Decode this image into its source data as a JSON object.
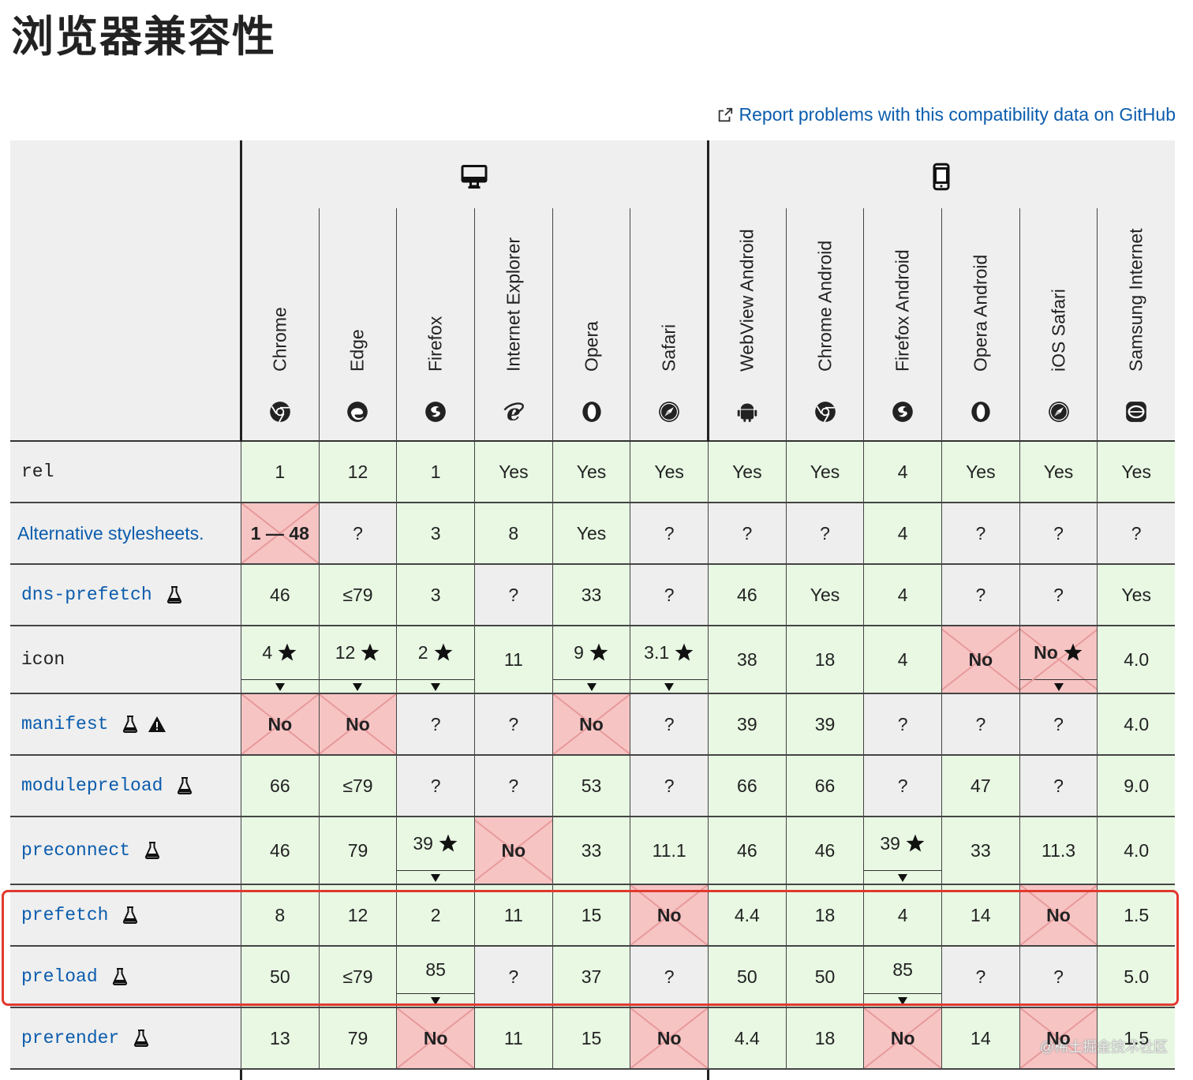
{
  "title": "浏览器兼容性",
  "report_link": "Report problems with this compatibility data on GitHub",
  "platforms": [
    {
      "name": "desktop",
      "icon": "desktop-icon"
    },
    {
      "name": "mobile",
      "icon": "mobile-icon"
    }
  ],
  "browsers": [
    {
      "name": "Chrome",
      "icon": "chrome-icon",
      "platform": "desktop"
    },
    {
      "name": "Edge",
      "icon": "edge-icon",
      "platform": "desktop"
    },
    {
      "name": "Firefox",
      "icon": "firefox-icon",
      "platform": "desktop"
    },
    {
      "name": "Internet Explorer",
      "icon": "ie-icon",
      "platform": "desktop"
    },
    {
      "name": "Opera",
      "icon": "opera-icon",
      "platform": "desktop"
    },
    {
      "name": "Safari",
      "icon": "safari-icon",
      "platform": "desktop"
    },
    {
      "name": "WebView Android",
      "icon": "android-icon",
      "platform": "mobile"
    },
    {
      "name": "Chrome Android",
      "icon": "chrome-icon",
      "platform": "mobile"
    },
    {
      "name": "Firefox Android",
      "icon": "firefox-icon",
      "platform": "mobile"
    },
    {
      "name": "Opera Android",
      "icon": "opera-icon",
      "platform": "mobile"
    },
    {
      "name": "iOS Safari",
      "icon": "safari-icon",
      "platform": "mobile"
    },
    {
      "name": "Samsung Internet",
      "icon": "samsung-icon",
      "platform": "mobile"
    }
  ],
  "rows": [
    {
      "label": "rel",
      "style": "mono-plain",
      "icons": [],
      "cells": [
        {
          "v": "1",
          "s": "yes"
        },
        {
          "v": "12",
          "s": "yes"
        },
        {
          "v": "1",
          "s": "yes"
        },
        {
          "v": "Yes",
          "s": "yes"
        },
        {
          "v": "Yes",
          "s": "yes"
        },
        {
          "v": "Yes",
          "s": "yes"
        },
        {
          "v": "Yes",
          "s": "yes"
        },
        {
          "v": "Yes",
          "s": "yes"
        },
        {
          "v": "4",
          "s": "yes"
        },
        {
          "v": "Yes",
          "s": "yes"
        },
        {
          "v": "Yes",
          "s": "yes"
        },
        {
          "v": "Yes",
          "s": "yes"
        }
      ]
    },
    {
      "label": "Alternative stylesheets.",
      "style": "sans-link",
      "icons": [],
      "cells": [
        {
          "v": "1 — 48",
          "s": "no-range"
        },
        {
          "v": "?",
          "s": "unk"
        },
        {
          "v": "3",
          "s": "yes"
        },
        {
          "v": "8",
          "s": "yes"
        },
        {
          "v": "Yes",
          "s": "yes"
        },
        {
          "v": "?",
          "s": "unk"
        },
        {
          "v": "?",
          "s": "unk"
        },
        {
          "v": "?",
          "s": "unk"
        },
        {
          "v": "4",
          "s": "yes"
        },
        {
          "v": "?",
          "s": "unk"
        },
        {
          "v": "?",
          "s": "unk"
        },
        {
          "v": "?",
          "s": "unk"
        }
      ]
    },
    {
      "label": "dns-prefetch",
      "style": "mono-link",
      "icons": [
        "experimental-icon"
      ],
      "cells": [
        {
          "v": "46",
          "s": "yes"
        },
        {
          "v": "≤79",
          "s": "yes"
        },
        {
          "v": "3",
          "s": "yes"
        },
        {
          "v": "?",
          "s": "unk"
        },
        {
          "v": "33",
          "s": "yes"
        },
        {
          "v": "?",
          "s": "unk"
        },
        {
          "v": "46",
          "s": "yes"
        },
        {
          "v": "Yes",
          "s": "yes"
        },
        {
          "v": "4",
          "s": "yes"
        },
        {
          "v": "?",
          "s": "unk"
        },
        {
          "v": "?",
          "s": "unk"
        },
        {
          "v": "Yes",
          "s": "yes"
        }
      ]
    },
    {
      "label": "icon",
      "style": "mono-plain",
      "icons": [],
      "cells": [
        {
          "v": "4",
          "s": "yes",
          "star": true,
          "note": true
        },
        {
          "v": "12",
          "s": "yes",
          "star": true,
          "note": true
        },
        {
          "v": "2",
          "s": "yes",
          "star": true,
          "note": true
        },
        {
          "v": "11",
          "s": "yes"
        },
        {
          "v": "9",
          "s": "yes",
          "star": true,
          "note": true
        },
        {
          "v": "3.1",
          "s": "yes",
          "star": true,
          "note": true
        },
        {
          "v": "38",
          "s": "yes"
        },
        {
          "v": "18",
          "s": "yes"
        },
        {
          "v": "4",
          "s": "yes"
        },
        {
          "v": "No",
          "s": "no"
        },
        {
          "v": "No",
          "s": "no",
          "star": true,
          "note": true
        },
        {
          "v": "4.0",
          "s": "yes"
        }
      ]
    },
    {
      "label": "manifest",
      "style": "mono-link",
      "icons": [
        "experimental-icon",
        "warning-icon"
      ],
      "cells": [
        {
          "v": "No",
          "s": "no"
        },
        {
          "v": "No",
          "s": "no"
        },
        {
          "v": "?",
          "s": "unk"
        },
        {
          "v": "?",
          "s": "unk"
        },
        {
          "v": "No",
          "s": "no"
        },
        {
          "v": "?",
          "s": "unk"
        },
        {
          "v": "39",
          "s": "yes"
        },
        {
          "v": "39",
          "s": "yes"
        },
        {
          "v": "?",
          "s": "unk"
        },
        {
          "v": "?",
          "s": "unk"
        },
        {
          "v": "?",
          "s": "unk"
        },
        {
          "v": "4.0",
          "s": "yes"
        }
      ]
    },
    {
      "label": "modulepreload",
      "style": "mono-link",
      "icons": [
        "experimental-icon"
      ],
      "cells": [
        {
          "v": "66",
          "s": "yes"
        },
        {
          "v": "≤79",
          "s": "yes"
        },
        {
          "v": "?",
          "s": "unk"
        },
        {
          "v": "?",
          "s": "unk"
        },
        {
          "v": "53",
          "s": "yes"
        },
        {
          "v": "?",
          "s": "unk"
        },
        {
          "v": "66",
          "s": "yes"
        },
        {
          "v": "66",
          "s": "yes"
        },
        {
          "v": "?",
          "s": "unk"
        },
        {
          "v": "47",
          "s": "yes"
        },
        {
          "v": "?",
          "s": "unk"
        },
        {
          "v": "9.0",
          "s": "yes"
        }
      ]
    },
    {
      "label": "preconnect",
      "style": "mono-link",
      "icons": [
        "experimental-icon"
      ],
      "cells": [
        {
          "v": "46",
          "s": "yes"
        },
        {
          "v": "79",
          "s": "yes"
        },
        {
          "v": "39",
          "s": "yes",
          "star": true,
          "note": true
        },
        {
          "v": "No",
          "s": "no"
        },
        {
          "v": "33",
          "s": "yes"
        },
        {
          "v": "11.1",
          "s": "yes"
        },
        {
          "v": "46",
          "s": "yes"
        },
        {
          "v": "46",
          "s": "yes"
        },
        {
          "v": "39",
          "s": "yes",
          "star": true,
          "note": true
        },
        {
          "v": "33",
          "s": "yes"
        },
        {
          "v": "11.3",
          "s": "yes"
        },
        {
          "v": "4.0",
          "s": "yes"
        }
      ]
    },
    {
      "label": "prefetch",
      "style": "mono-link",
      "icons": [
        "experimental-icon"
      ],
      "cells": [
        {
          "v": "8",
          "s": "yes"
        },
        {
          "v": "12",
          "s": "yes"
        },
        {
          "v": "2",
          "s": "yes"
        },
        {
          "v": "11",
          "s": "yes"
        },
        {
          "v": "15",
          "s": "yes"
        },
        {
          "v": "No",
          "s": "no"
        },
        {
          "v": "4.4",
          "s": "yes"
        },
        {
          "v": "18",
          "s": "yes"
        },
        {
          "v": "4",
          "s": "yes"
        },
        {
          "v": "14",
          "s": "yes"
        },
        {
          "v": "No",
          "s": "no"
        },
        {
          "v": "1.5",
          "s": "yes"
        }
      ]
    },
    {
      "label": "preload",
      "style": "mono-link",
      "icons": [
        "experimental-icon"
      ],
      "cells": [
        {
          "v": "50",
          "s": "yes"
        },
        {
          "v": "≤79",
          "s": "yes"
        },
        {
          "v": "85",
          "s": "yes",
          "note": true
        },
        {
          "v": "?",
          "s": "unk"
        },
        {
          "v": "37",
          "s": "yes"
        },
        {
          "v": "?",
          "s": "unk"
        },
        {
          "v": "50",
          "s": "yes"
        },
        {
          "v": "50",
          "s": "yes"
        },
        {
          "v": "85",
          "s": "yes",
          "note": true
        },
        {
          "v": "?",
          "s": "unk"
        },
        {
          "v": "?",
          "s": "unk"
        },
        {
          "v": "5.0",
          "s": "yes"
        }
      ]
    },
    {
      "label": "prerender",
      "style": "mono-link",
      "icons": [
        "experimental-icon"
      ],
      "cells": [
        {
          "v": "13",
          "s": "yes"
        },
        {
          "v": "79",
          "s": "yes"
        },
        {
          "v": "No",
          "s": "no"
        },
        {
          "v": "11",
          "s": "yes"
        },
        {
          "v": "15",
          "s": "yes"
        },
        {
          "v": "No",
          "s": "no"
        },
        {
          "v": "4.4",
          "s": "yes"
        },
        {
          "v": "18",
          "s": "yes"
        },
        {
          "v": "No",
          "s": "no"
        },
        {
          "v": "14",
          "s": "yes"
        },
        {
          "v": "No",
          "s": "no"
        },
        {
          "v": "1.5",
          "s": "yes"
        }
      ]
    }
  ],
  "watermark": "@稀土掘金技术社区",
  "colors": {
    "yes": "#e8f8e3",
    "no": "#f7c4c4",
    "unknown": "#eeeeee",
    "link": "#0b5cad",
    "highlight": "#e0392f"
  }
}
